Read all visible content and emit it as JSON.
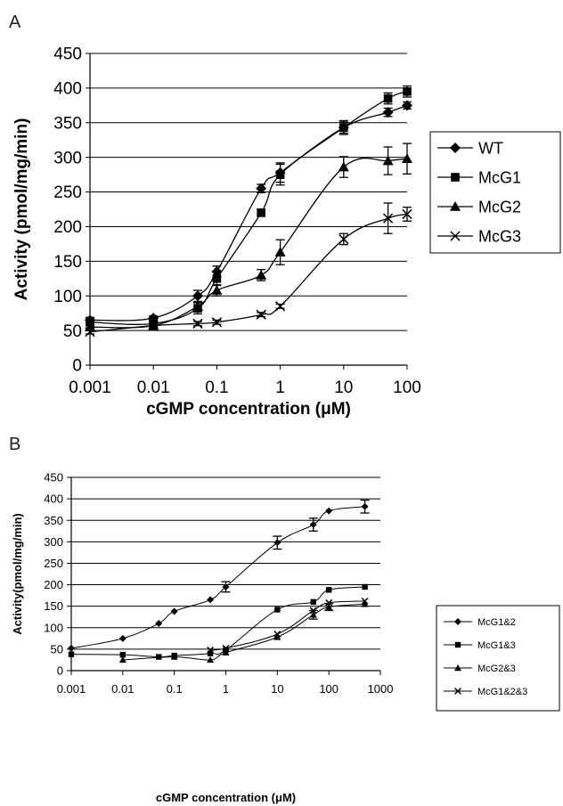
{
  "panels": [
    "A",
    "B"
  ],
  "chart_data": [
    {
      "type": "line",
      "panel": "A",
      "title": "",
      "xlabel": "cGMP concentration (μM)",
      "ylabel": "Activity (pmol/mg/min)",
      "xscale": "log",
      "xlim": [
        0.001,
        100
      ],
      "ylim": [
        0,
        450
      ],
      "xticks": [
        "0.001",
        "0.01",
        "0.1",
        "1",
        "10",
        "100"
      ],
      "yticks": [
        "0",
        "50",
        "100",
        "150",
        "200",
        "250",
        "300",
        "350",
        "400",
        "450"
      ],
      "grid": "horizontal",
      "legend_position": "right",
      "series": [
        {
          "name": "WT",
          "marker": "diamond",
          "x": [
            0.001,
            0.01,
            0.05,
            0.1,
            0.5,
            1,
            10,
            50,
            100
          ],
          "y": [
            65,
            68,
            100,
            135,
            255,
            278,
            343,
            365,
            375
          ],
          "err": [
            4,
            3,
            8,
            8,
            6,
            14,
            8,
            6,
            5
          ]
        },
        {
          "name": "McG1",
          "marker": "square",
          "x": [
            0.001,
            0.01,
            0.05,
            0.1,
            0.5,
            1,
            10,
            50,
            100
          ],
          "y": [
            62,
            60,
            82,
            125,
            220,
            275,
            343,
            385,
            395
          ],
          "err": [
            3,
            3,
            8,
            10,
            5,
            15,
            10,
            8,
            8
          ]
        },
        {
          "name": "McG2",
          "marker": "triangle",
          "x": [
            0.001,
            0.01,
            0.05,
            0.1,
            0.5,
            1,
            10,
            50,
            100
          ],
          "y": [
            55,
            57,
            85,
            108,
            130,
            163,
            286,
            295,
            298
          ],
          "err": [
            3,
            3,
            6,
            8,
            8,
            18,
            15,
            20,
            22
          ]
        },
        {
          "name": "McG3",
          "marker": "x",
          "x": [
            0.001,
            0.01,
            0.05,
            0.1,
            0.5,
            1,
            10,
            50,
            100
          ],
          "y": [
            48,
            57,
            60,
            62,
            73,
            85,
            182,
            212,
            218
          ],
          "err": [
            3,
            3,
            3,
            3,
            3,
            3,
            8,
            22,
            10
          ]
        }
      ]
    },
    {
      "type": "line",
      "panel": "B",
      "title": "",
      "xlabel": "cGMP concentration (μM)",
      "ylabel": "Activity(pmol/mg/min)",
      "xscale": "log",
      "xlim": [
        0.001,
        1000
      ],
      "ylim": [
        0,
        450
      ],
      "xticks": [
        "0.001",
        "0.01",
        "0.1",
        "1",
        "10",
        "100",
        "1000"
      ],
      "yticks": [
        "0",
        "50",
        "100",
        "150",
        "200",
        "250",
        "300",
        "350",
        "400",
        "450"
      ],
      "grid": "horizontal",
      "legend_position": "right",
      "series": [
        {
          "name": "McG1&2",
          "marker": "diamond",
          "x": [
            0.001,
            0.01,
            0.05,
            0.1,
            0.5,
            1,
            10,
            50,
            100,
            500
          ],
          "y": [
            52,
            75,
            110,
            138,
            165,
            195,
            298,
            340,
            372,
            382
          ],
          "err": [
            0,
            0,
            0,
            0,
            0,
            12,
            15,
            15,
            0,
            15
          ]
        },
        {
          "name": "McG1&3",
          "marker": "square",
          "x": [
            0.001,
            0.01,
            0.05,
            0.1,
            0.5,
            1,
            10,
            50,
            100,
            500
          ],
          "y": [
            38,
            37,
            32,
            35,
            40,
            48,
            142,
            160,
            188,
            195
          ],
          "err": [
            0,
            0,
            0,
            0,
            0,
            0,
            0,
            0,
            0,
            0
          ]
        },
        {
          "name": "McG2&3",
          "marker": "triangle",
          "x": [
            0.01,
            0.1,
            0.5,
            1,
            10,
            50,
            100,
            500
          ],
          "y": [
            25,
            32,
            25,
            42,
            78,
            130,
            148,
            155
          ],
          "err": [
            0,
            0,
            0,
            0,
            0,
            10,
            8,
            0
          ]
        },
        {
          "name": "McG1&2&3",
          "marker": "x",
          "x": [
            0.5,
            1,
            10,
            50,
            100,
            500
          ],
          "y": [
            48,
            52,
            85,
            140,
            158,
            162
          ],
          "err": [
            0,
            0,
            0,
            0,
            0,
            0
          ]
        }
      ]
    }
  ]
}
